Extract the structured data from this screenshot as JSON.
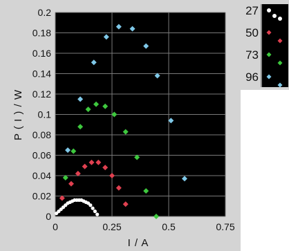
{
  "chart_data": {
    "type": "scatter",
    "xlabel": "I / A",
    "ylabel": "P ( I ) / W",
    "xlim": [
      0,
      0.75
    ],
    "ylim": [
      0,
      0.2
    ],
    "x_ticks": [
      "0",
      "0.25",
      "0.5",
      "0.75"
    ],
    "y_ticks": [
      "0",
      "0.02",
      "0.04",
      "0.06",
      "0.08",
      "0.1",
      "0.12",
      "0.14",
      "0.16",
      "0.18",
      "0.2"
    ],
    "grid": true,
    "legend_position": "right",
    "background_color": "#000000",
    "grid_color": "#7a7a7a",
    "series": [
      {
        "name": "27",
        "color": "#ffffff",
        "x": [
          0.005,
          0.015,
          0.025,
          0.035,
          0.045,
          0.055,
          0.065,
          0.075,
          0.085,
          0.095,
          0.105,
          0.115,
          0.125,
          0.135,
          0.145,
          0.155,
          0.165,
          0.175,
          0.185
        ],
        "y": [
          0.003,
          0.005,
          0.007,
          0.009,
          0.011,
          0.013,
          0.014,
          0.015,
          0.016,
          0.016,
          0.016,
          0.016,
          0.015,
          0.014,
          0.013,
          0.011,
          0.008,
          0.005,
          0.002
        ]
      },
      {
        "name": "50",
        "color": "#e04050",
        "x": [
          0.03,
          0.07,
          0.1,
          0.13,
          0.16,
          0.19,
          0.22,
          0.25,
          0.28,
          0.31
        ],
        "y": [
          0.018,
          0.032,
          0.042,
          0.049,
          0.053,
          0.053,
          0.048,
          0.04,
          0.028,
          0.012
        ]
      },
      {
        "name": "73",
        "color": "#3ec83e",
        "x": [
          0.045,
          0.08,
          0.11,
          0.145,
          0.18,
          0.22,
          0.26,
          0.31,
          0.36,
          0.4,
          0.445
        ],
        "y": [
          0.038,
          0.064,
          0.088,
          0.105,
          0.11,
          0.108,
          0.1,
          0.083,
          0.058,
          0.025,
          0.0
        ]
      },
      {
        "name": "96",
        "color": "#7fc8e8",
        "x": [
          0.055,
          0.11,
          0.17,
          0.225,
          0.28,
          0.34,
          0.4,
          0.45,
          0.51,
          0.57
        ],
        "y": [
          0.065,
          0.115,
          0.151,
          0.176,
          0.186,
          0.184,
          0.167,
          0.138,
          0.094,
          0.037
        ]
      }
    ]
  }
}
